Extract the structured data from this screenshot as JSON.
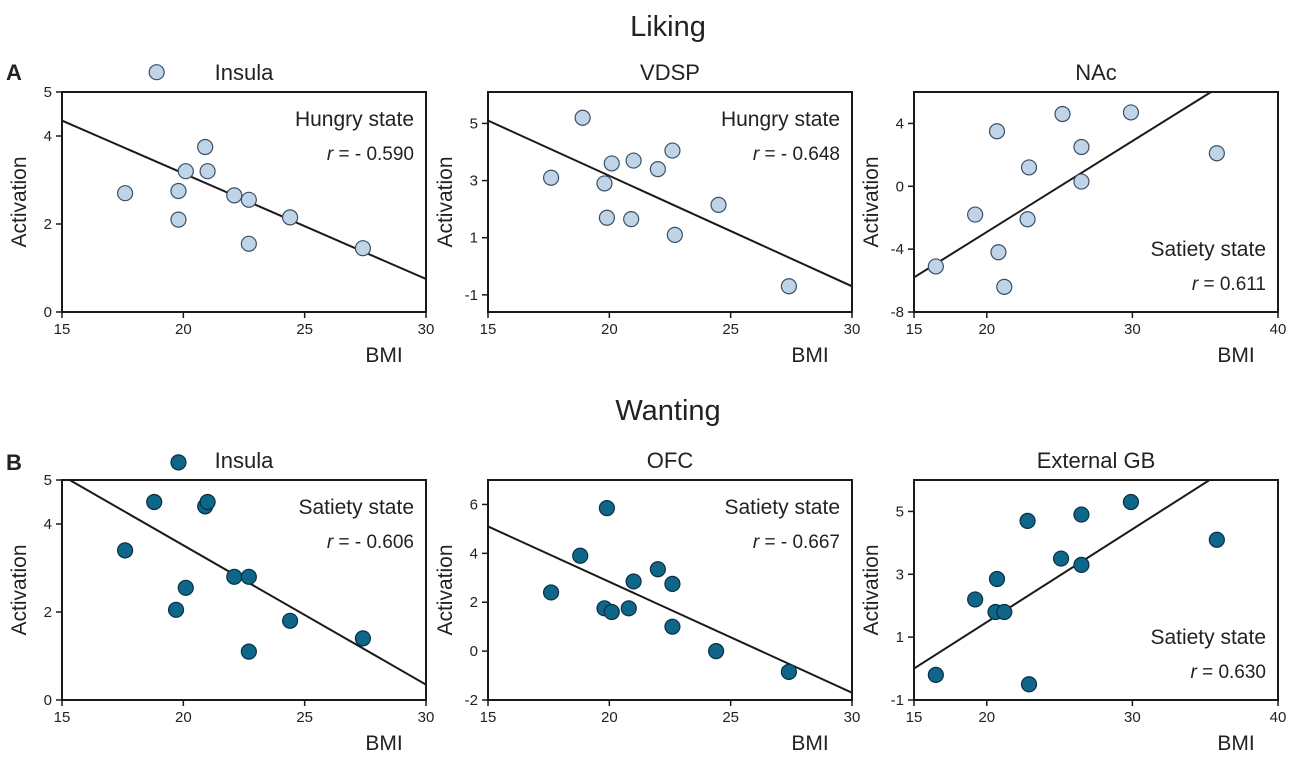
{
  "sections": [
    {
      "title": "Liking",
      "letter": "A"
    },
    {
      "title": "Wanting",
      "letter": "B"
    }
  ],
  "chart_data": [
    {
      "type": "scatter",
      "title": "Insula",
      "xlabel": "BMI",
      "ylabel": "Activation",
      "xlim": [
        15,
        30
      ],
      "ylim": [
        0,
        5
      ],
      "xticks": [
        15,
        20,
        25,
        30
      ],
      "yticks": [
        0,
        2,
        4,
        5
      ],
      "state": "Hungry state",
      "r_prefix": "r",
      "r_value": "= - 0.590",
      "point_fill": "#c0d4e8",
      "point_stroke": "#3a4f66",
      "fit": [
        [
          15,
          4.35
        ],
        [
          30,
          0.75
        ]
      ],
      "points": [
        [
          17.6,
          2.7
        ],
        [
          18.9,
          5.45
        ],
        [
          19.8,
          2.75
        ],
        [
          19.8,
          2.1
        ],
        [
          20.1,
          3.2
        ],
        [
          20.9,
          3.75
        ],
        [
          21.0,
          3.2
        ],
        [
          22.1,
          2.65
        ],
        [
          22.7,
          2.55
        ],
        [
          22.7,
          1.55
        ],
        [
          24.4,
          2.15
        ],
        [
          27.4,
          1.45
        ]
      ]
    },
    {
      "type": "scatter",
      "title": "VDSP",
      "xlabel": "BMI",
      "ylabel": "Activation",
      "xlim": [
        15,
        30
      ],
      "ylim": [
        -1.6,
        6.1
      ],
      "xticks": [
        15,
        20,
        25,
        30
      ],
      "yticks": [
        -1,
        1,
        3,
        5
      ],
      "state": "Hungry state",
      "r_prefix": "r",
      "r_value": "= - 0.648",
      "point_fill": "#c0d4e8",
      "point_stroke": "#3a4f66",
      "fit": [
        [
          15,
          5.1
        ],
        [
          30,
          -0.7
        ]
      ],
      "points": [
        [
          17.6,
          3.1
        ],
        [
          18.9,
          5.2
        ],
        [
          19.8,
          2.9
        ],
        [
          19.9,
          1.7
        ],
        [
          20.1,
          3.6
        ],
        [
          20.9,
          1.65
        ],
        [
          21.0,
          3.7
        ],
        [
          22.0,
          3.4
        ],
        [
          22.6,
          4.05
        ],
        [
          22.7,
          1.1
        ],
        [
          24.5,
          2.15
        ],
        [
          27.4,
          -0.7
        ]
      ]
    },
    {
      "type": "scatter",
      "title": "NAc",
      "xlabel": "BMI",
      "ylabel": "Activation",
      "xlim": [
        15,
        40
      ],
      "ylim": [
        -8,
        6
      ],
      "xticks": [
        15,
        20,
        30,
        40
      ],
      "yticks": [
        -8,
        -4,
        0,
        4
      ],
      "state": "Satiety state",
      "r_prefix": "r",
      "r_value": "= 0.611",
      "point_fill": "#c0d4e8",
      "point_stroke": "#3a4f66",
      "fit": [
        [
          15,
          -5.8
        ],
        [
          35.4,
          6
        ]
      ],
      "points": [
        [
          16.5,
          -5.1
        ],
        [
          19.2,
          -1.8
        ],
        [
          20.7,
          3.5
        ],
        [
          20.8,
          -4.2
        ],
        [
          21.2,
          -6.4
        ],
        [
          22.9,
          1.2
        ],
        [
          22.8,
          -2.1
        ],
        [
          25.2,
          4.6
        ],
        [
          26.5,
          2.5
        ],
        [
          26.5,
          0.3
        ],
        [
          29.9,
          4.7
        ],
        [
          35.8,
          2.1
        ]
      ]
    },
    {
      "type": "scatter",
      "title": "Insula",
      "xlabel": "BMI",
      "ylabel": "Activation",
      "xlim": [
        15,
        30
      ],
      "ylim": [
        0,
        5
      ],
      "xticks": [
        15,
        20,
        25,
        30
      ],
      "yticks": [
        0,
        2,
        4,
        5
      ],
      "state": "Satiety state",
      "r_prefix": "r",
      "r_value": "= - 0.606",
      "point_fill": "#0e6689",
      "point_stroke": "#0a2f44",
      "fit": [
        [
          15,
          5.1
        ],
        [
          30,
          0.35
        ]
      ],
      "points": [
        [
          17.6,
          3.4
        ],
        [
          18.8,
          4.5
        ],
        [
          19.8,
          5.4
        ],
        [
          19.7,
          2.05
        ],
        [
          20.1,
          2.55
        ],
        [
          20.9,
          4.4
        ],
        [
          21.0,
          4.5
        ],
        [
          22.1,
          2.8
        ],
        [
          22.7,
          2.8
        ],
        [
          22.7,
          1.1
        ],
        [
          24.4,
          1.8
        ],
        [
          27.4,
          1.4
        ]
      ]
    },
    {
      "type": "scatter",
      "title": "OFC",
      "xlabel": "BMI",
      "ylabel": "Activation",
      "xlim": [
        15,
        30
      ],
      "ylim": [
        -2,
        7
      ],
      "xticks": [
        15,
        20,
        25,
        30
      ],
      "yticks": [
        -2,
        0,
        2,
        4,
        6
      ],
      "state": "Satiety state",
      "r_prefix": "r",
      "r_value": "= - 0.667",
      "point_fill": "#0e6689",
      "point_stroke": "#0a2f44",
      "fit": [
        [
          15,
          5.1
        ],
        [
          30,
          -1.7
        ]
      ],
      "points": [
        [
          17.6,
          2.4
        ],
        [
          18.8,
          3.9
        ],
        [
          19.8,
          1.75
        ],
        [
          19.9,
          5.85
        ],
        [
          20.1,
          1.6
        ],
        [
          20.8,
          1.75
        ],
        [
          21.0,
          2.85
        ],
        [
          22.0,
          3.35
        ],
        [
          22.6,
          2.75
        ],
        [
          22.6,
          1.0
        ],
        [
          24.4,
          0.0
        ],
        [
          27.4,
          -0.85
        ]
      ]
    },
    {
      "type": "scatter",
      "title": "External GB",
      "xlabel": "BMI",
      "ylabel": "Activation",
      "xlim": [
        15,
        40
      ],
      "ylim": [
        -1,
        6
      ],
      "xticks": [
        15,
        20,
        30,
        40
      ],
      "yticks": [
        -1,
        1,
        3,
        5
      ],
      "state": "Satiety state",
      "r_prefix": "r",
      "r_value": "= 0.630",
      "point_fill": "#0e6689",
      "point_stroke": "#0a2f44",
      "fit": [
        [
          15,
          0.0
        ],
        [
          35.3,
          6
        ]
      ],
      "points": [
        [
          16.5,
          -0.2
        ],
        [
          19.2,
          2.2
        ],
        [
          20.6,
          1.8
        ],
        [
          20.7,
          2.85
        ],
        [
          21.2,
          1.8
        ],
        [
          22.8,
          4.7
        ],
        [
          22.9,
          -0.5
        ],
        [
          25.1,
          3.5
        ],
        [
          26.5,
          3.3
        ],
        [
          26.5,
          4.9
        ],
        [
          29.9,
          5.3
        ],
        [
          35.8,
          4.1
        ]
      ]
    }
  ]
}
